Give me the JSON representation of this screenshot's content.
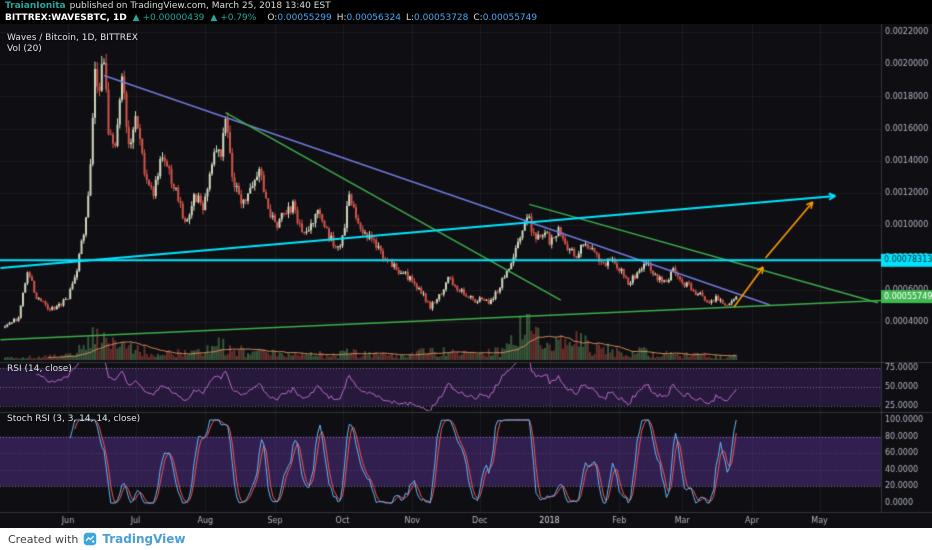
{
  "header": {
    "publisher": "TraianIonita",
    "published_text": "published on TradingView.com, March 25, 2018 13:40 EST"
  },
  "quote_bar": {
    "symbol": "BITTREX:WAVESBTC, 1D",
    "up_arrow": "▲",
    "change_abs": "+0.00000439",
    "change_pct": "+0.79%",
    "ohlc": [
      {
        "label": "O:",
        "value": "0.00055299"
      },
      {
        "label": "H:",
        "value": "0.00056324"
      },
      {
        "label": "L:",
        "value": "0.00053728"
      },
      {
        "label": "C:",
        "value": "0.00055749"
      }
    ]
  },
  "legends": {
    "main": "Waves / Bitcoin, 1D, BITTREX",
    "volume": "Vol (20)",
    "rsi": "RSI (14, close)",
    "stoch": "Stoch RSI (3, 3, 14, 14, close)"
  },
  "footer": {
    "created_with": "Created with",
    "brand": "TradingView"
  },
  "colors": {
    "background": "#0e0e13",
    "grid": "rgba(255,255,255,0.06)",
    "separator": "rgba(255,255,255,0.16)",
    "axis_text": "#b0b4bf",
    "axis_text_bright": "#d8dbe2",
    "candle_up": "#cdd6bc",
    "candle_down": "#cf5349",
    "vol_up": "rgba(96,158,96,0.5)",
    "vol_down": "rgba(190,80,70,0.5)",
    "vol_ma": "#d08a5a",
    "rsi_line": "#ba68c8",
    "band_fill": "rgba(92,50,150,0.32)",
    "stoch_band_fill": "rgba(84,48,140,0.5)",
    "stoch_k": "#64b5f6",
    "stoch_d": "#ef5350",
    "dashed_line": "rgba(255,255,255,0.35)",
    "dashed_faint": "rgba(255,255,255,0.14)",
    "trend_blue": "#6f7bdb",
    "trend_green": "#3fae49",
    "trend_cyan": "#00e5ff",
    "arrow_orange": "#ff9800",
    "accent_green": "#26a69a",
    "value_blue": "#4da6f0"
  },
  "chart_data": {
    "type": "candlestick",
    "title": "Waves / Bitcoin, 1D, BITTREX",
    "exchange": "BITTREX",
    "pair": "WAVES/BTC",
    "interval": "1D",
    "last_close": 0.00055749,
    "days_total": 326,
    "noise_seed": 1337,
    "months": [
      {
        "label": "Jun",
        "day": 28
      },
      {
        "label": "Jul",
        "day": 58
      },
      {
        "label": "Aug",
        "day": 89
      },
      {
        "label": "Sep",
        "day": 120
      },
      {
        "label": "Oct",
        "day": 150
      },
      {
        "label": "Nov",
        "day": 181
      },
      {
        "label": "Dec",
        "day": 211
      },
      {
        "label": "2018",
        "day": 242,
        "year": true
      },
      {
        "label": "Feb",
        "day": 273
      },
      {
        "label": "Mar",
        "day": 301
      },
      {
        "label": "Apr",
        "day": 332
      },
      {
        "label": "May",
        "day": 362
      }
    ],
    "price_ticks": [
      0.0004,
      0.0006,
      0.0008,
      0.001,
      0.0012,
      0.0014,
      0.0016,
      0.0018,
      0.002,
      0.0022
    ],
    "rsi_ticks": [
      75,
      50,
      25
    ],
    "stoch_ticks": [
      100,
      80,
      60,
      40,
      20,
      0
    ],
    "rsi_band": [
      25,
      75
    ],
    "stoch_band": [
      20,
      80
    ],
    "price_tags": [
      {
        "value": "0.00078313",
        "price": 0.00078313,
        "bg": "#00e5ff",
        "fg": "#002b33"
      },
      {
        "value": "0.00055749",
        "price": 0.00055749,
        "bg": "#3fb950",
        "fg": "#ffffff"
      }
    ],
    "price_anchors": [
      [
        0,
        0.00038
      ],
      [
        6,
        0.00042
      ],
      [
        10,
        0.00072
      ],
      [
        14,
        0.00055
      ],
      [
        20,
        0.00048
      ],
      [
        25,
        0.00052
      ],
      [
        28,
        0.00056
      ],
      [
        32,
        0.00072
      ],
      [
        36,
        0.00105
      ],
      [
        38,
        0.0014
      ],
      [
        40,
        0.002
      ],
      [
        42,
        0.00182
      ],
      [
        44,
        0.00208
      ],
      [
        46,
        0.00162
      ],
      [
        49,
        0.0015
      ],
      [
        52,
        0.00188
      ],
      [
        55,
        0.00152
      ],
      [
        58,
        0.00165
      ],
      [
        62,
        0.00132
      ],
      [
        66,
        0.0012
      ],
      [
        70,
        0.00142
      ],
      [
        75,
        0.00126
      ],
      [
        80,
        0.001
      ],
      [
        84,
        0.0012
      ],
      [
        88,
        0.00112
      ],
      [
        93,
        0.00148
      ],
      [
        96,
        0.00144
      ],
      [
        98,
        0.00168
      ],
      [
        101,
        0.00131
      ],
      [
        105,
        0.0011
      ],
      [
        109,
        0.00126
      ],
      [
        113,
        0.00136
      ],
      [
        117,
        0.00111
      ],
      [
        120,
        0.001
      ],
      [
        124,
        0.00106
      ],
      [
        128,
        0.00113
      ],
      [
        132,
        0.00096
      ],
      [
        136,
        0.00101
      ],
      [
        140,
        0.00109
      ],
      [
        144,
        0.00093
      ],
      [
        148,
        0.00086
      ],
      [
        150,
        0.00091
      ],
      [
        153,
        0.00122
      ],
      [
        156,
        0.00106
      ],
      [
        160,
        0.00096
      ],
      [
        164,
        0.00089
      ],
      [
        168,
        0.00081
      ],
      [
        172,
        0.00076
      ],
      [
        176,
        0.00071
      ],
      [
        180,
        0.00067
      ],
      [
        185,
        0.00059
      ],
      [
        189,
        0.00049
      ],
      [
        193,
        0.00056
      ],
      [
        197,
        0.00068
      ],
      [
        201,
        0.00061
      ],
      [
        205,
        0.00056
      ],
      [
        209,
        0.00053
      ],
      [
        211,
        0.00055
      ],
      [
        215,
        0.00051
      ],
      [
        219,
        0.00059
      ],
      [
        223,
        0.00071
      ],
      [
        227,
        0.00086
      ],
      [
        230,
        0.001
      ],
      [
        233,
        0.00104
      ],
      [
        236,
        0.00089
      ],
      [
        239,
        0.00096
      ],
      [
        242,
        0.00091
      ],
      [
        246,
        0.00098
      ],
      [
        250,
        0.00086
      ],
      [
        254,
        0.00081
      ],
      [
        258,
        0.00089
      ],
      [
        262,
        0.00083
      ],
      [
        266,
        0.00076
      ],
      [
        270,
        0.00081
      ],
      [
        273,
        0.00073
      ],
      [
        277,
        0.00063
      ],
      [
        281,
        0.00071
      ],
      [
        285,
        0.00076
      ],
      [
        289,
        0.00069
      ],
      [
        293,
        0.00065
      ],
      [
        297,
        0.00071
      ],
      [
        301,
        0.00064
      ],
      [
        305,
        0.00061
      ],
      [
        309,
        0.00057
      ],
      [
        313,
        0.00053
      ],
      [
        317,
        0.00055
      ],
      [
        321,
        0.00051
      ],
      [
        324,
        0.00054
      ],
      [
        325,
        0.00055749
      ]
    ],
    "volume_anchors": [
      [
        0,
        0.06
      ],
      [
        20,
        0.07
      ],
      [
        30,
        0.12
      ],
      [
        36,
        0.3
      ],
      [
        40,
        0.55
      ],
      [
        44,
        0.5
      ],
      [
        48,
        0.3
      ],
      [
        55,
        0.25
      ],
      [
        60,
        0.2
      ],
      [
        70,
        0.18
      ],
      [
        80,
        0.15
      ],
      [
        90,
        0.2
      ],
      [
        96,
        0.32
      ],
      [
        100,
        0.28
      ],
      [
        108,
        0.18
      ],
      [
        116,
        0.14
      ],
      [
        124,
        0.12
      ],
      [
        132,
        0.1
      ],
      [
        140,
        0.12
      ],
      [
        148,
        0.1
      ],
      [
        153,
        0.22
      ],
      [
        160,
        0.12
      ],
      [
        170,
        0.1
      ],
      [
        180,
        0.1
      ],
      [
        189,
        0.2
      ],
      [
        197,
        0.16
      ],
      [
        205,
        0.12
      ],
      [
        212,
        0.14
      ],
      [
        219,
        0.18
      ],
      [
        224,
        0.3
      ],
      [
        228,
        0.5
      ],
      [
        231,
        0.8
      ],
      [
        234,
        1
      ],
      [
        237,
        0.85
      ],
      [
        240,
        0.7
      ],
      [
        244,
        0.6
      ],
      [
        248,
        0.5
      ],
      [
        252,
        0.42
      ],
      [
        256,
        0.38
      ],
      [
        260,
        0.3
      ],
      [
        264,
        0.26
      ],
      [
        268,
        0.22
      ],
      [
        273,
        0.2
      ],
      [
        278,
        0.16
      ],
      [
        283,
        0.18
      ],
      [
        288,
        0.14
      ],
      [
        293,
        0.12
      ],
      [
        298,
        0.12
      ],
      [
        303,
        0.1
      ],
      [
        308,
        0.1
      ],
      [
        313,
        0.09
      ],
      [
        318,
        0.08
      ],
      [
        322,
        0.09
      ],
      [
        325,
        0.1
      ]
    ],
    "trendlines": [
      {
        "name": "long-term-descending-blue",
        "color": "#6f7bdb",
        "width": 1.5,
        "from": [
          44,
          0.00193
        ],
        "to": [
          340,
          0.000505
        ]
      },
      {
        "name": "descending-green-inner",
        "color": "#3fae49",
        "width": 1.5,
        "from": [
          98,
          0.0017
        ],
        "to": [
          247,
          0.000536
        ]
      },
      {
        "name": "descending-green-outer",
        "color": "#3fae49",
        "width": 1.5,
        "from": [
          233,
          0.00113
        ],
        "to": [
          388,
          0.00052
        ]
      },
      {
        "name": "ascending-green-support",
        "color": "#3fae49",
        "width": 1.5,
        "from": [
          -2,
          0.00029
        ],
        "to": [
          392,
          0.000535
        ]
      },
      {
        "name": "ascending-cyan-target",
        "color": "#00e5ff",
        "width": 2,
        "from": [
          -2,
          0.000735
        ],
        "to": [
          369,
          0.001182
        ],
        "arrow": true
      }
    ],
    "horizontal_line": {
      "price": 0.00078313,
      "color": "#00e5ff",
      "width": 2
    },
    "arrows": [
      {
        "from": [
          324,
          0.000493
        ],
        "to": [
          337,
          0.000741
        ],
        "color": "#ff9800"
      },
      {
        "from": [
          338,
          0.000797
        ],
        "to": [
          359,
          0.001145
        ],
        "color": "#ff9800"
      }
    ]
  }
}
